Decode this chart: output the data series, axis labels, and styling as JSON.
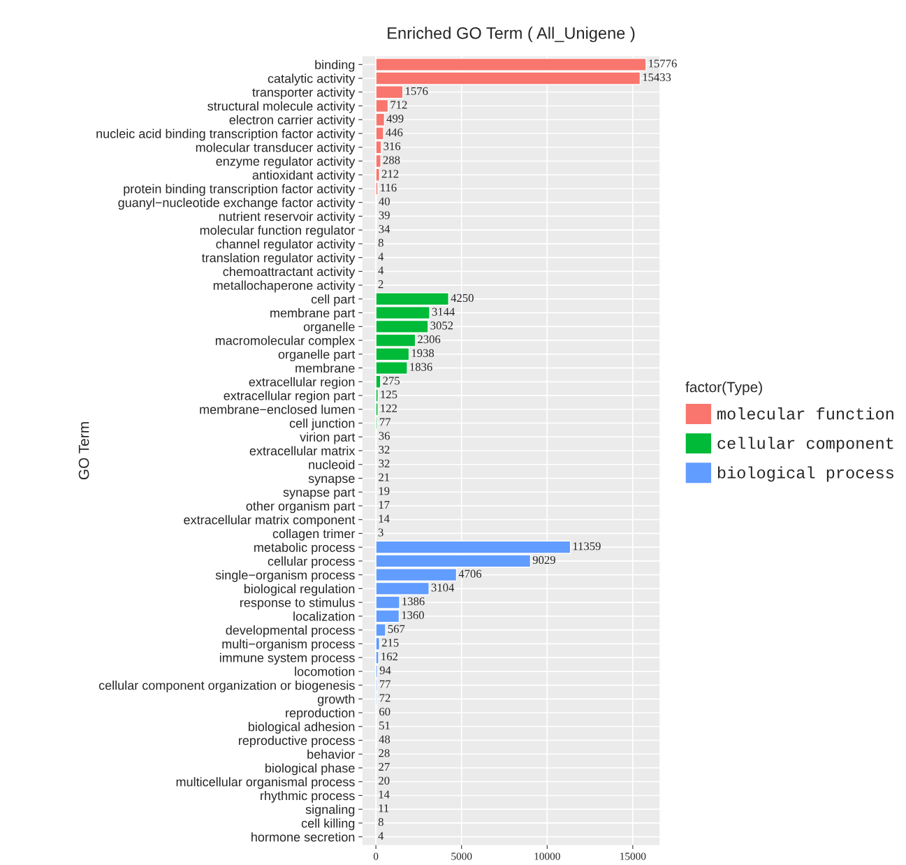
{
  "chart_data": {
    "type": "bar",
    "orientation": "horizontal",
    "title": "Enriched GO Term ( All_Unigene )",
    "ylabel": "GO Term",
    "legend_title": "factor(Type)",
    "legend": "right",
    "grid": true,
    "data_labels": true,
    "categories": [
      "binding",
      "catalytic activity",
      "transporter activity",
      "structural molecule activity",
      "electron carrier activity",
      "nucleic acid binding transcription factor activity",
      "molecular transducer activity",
      "enzyme regulator activity",
      "antioxidant activity",
      "protein binding transcription factor activity",
      "guanyl−nucleotide exchange factor activity",
      "nutrient reservoir activity",
      "molecular function regulator",
      "channel regulator activity",
      "translation regulator activity",
      "chemoattractant activity",
      "metallochaperone activity",
      "cell part",
      "membrane part",
      "organelle",
      "macromolecular complex",
      "organelle part",
      "membrane",
      "extracellular region",
      "extracellular region part",
      "membrane−enclosed lumen",
      "cell junction",
      "virion part",
      "extracellular matrix",
      "nucleoid",
      "synapse",
      "synapse part",
      "other organism part",
      "extracellular matrix component",
      "collagen trimer",
      "metabolic process",
      "cellular process",
      "single−organism process",
      "biological regulation",
      "response to stimulus",
      "localization",
      "developmental process",
      "multi−organism process",
      "immune system process",
      "locomotion",
      "cellular component organization or biogenesis",
      "growth",
      "reproduction",
      "biological adhesion",
      "reproductive process",
      "behavior",
      "biological phase",
      "multicellular organismal process",
      "rhythmic process",
      "signaling",
      "cell killing",
      "hormone secretion"
    ],
    "series": [
      {
        "name": "molecular function",
        "color": "#f8766d",
        "values": [
          15776,
          15433,
          1576,
          712,
          499,
          446,
          316,
          288,
          212,
          116,
          40,
          39,
          34,
          8,
          4,
          4,
          2,
          null,
          null,
          null,
          null,
          null,
          null,
          null,
          null,
          null,
          null,
          null,
          null,
          null,
          null,
          null,
          null,
          null,
          null,
          null,
          null,
          null,
          null,
          null,
          null,
          null,
          null,
          null,
          null,
          null,
          null,
          null,
          null,
          null,
          null,
          null,
          null,
          null,
          null,
          null,
          null
        ]
      },
      {
        "name": "cellular component",
        "color": "#00ba38",
        "values": [
          null,
          null,
          null,
          null,
          null,
          null,
          null,
          null,
          null,
          null,
          null,
          null,
          null,
          null,
          null,
          null,
          null,
          4250,
          3144,
          3052,
          2306,
          1938,
          1836,
          275,
          125,
          122,
          77,
          36,
          32,
          32,
          21,
          19,
          17,
          14,
          3,
          null,
          null,
          null,
          null,
          null,
          null,
          null,
          null,
          null,
          null,
          null,
          null,
          null,
          null,
          null,
          null,
          null,
          null,
          null,
          null,
          null,
          null
        ]
      },
      {
        "name": "biological process",
        "color": "#619cff",
        "values": [
          null,
          null,
          null,
          null,
          null,
          null,
          null,
          null,
          null,
          null,
          null,
          null,
          null,
          null,
          null,
          null,
          null,
          null,
          null,
          null,
          null,
          null,
          null,
          null,
          null,
          null,
          null,
          null,
          null,
          null,
          null,
          null,
          null,
          null,
          null,
          11359,
          9029,
          4706,
          3104,
          1386,
          1360,
          567,
          215,
          162,
          94,
          77,
          72,
          60,
          51,
          48,
          28,
          27,
          20,
          14,
          11,
          8,
          4
        ]
      }
    ],
    "xlim": [
      -788.8,
      16564.8
    ],
    "xticks": [
      0,
      5000,
      10000,
      15000
    ]
  }
}
